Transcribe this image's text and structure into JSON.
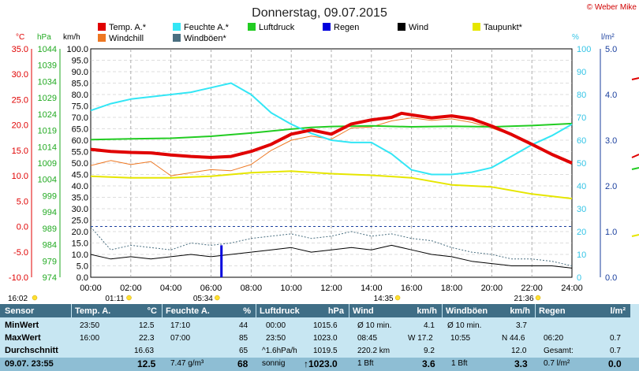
{
  "chart_data": {
    "type": "line",
    "title": "Donnerstag, 09.07.2015",
    "copyright": "© Weber Mike",
    "legend": [
      {
        "name": "Temp. A.*",
        "color": "#e00000"
      },
      {
        "name": "Feuchte A.*",
        "color": "#33e6f5"
      },
      {
        "name": "Luftdruck",
        "color": "#22cc22"
      },
      {
        "name": "Regen",
        "color": "#0000dd"
      },
      {
        "name": "Wind",
        "color": "#000000"
      },
      {
        "name": "Taupunkt*",
        "color": "#e6e600"
      },
      {
        "name": "Windchill",
        "color": "#ee7722"
      },
      {
        "name": "Windböen*",
        "color": "#4a6f80"
      }
    ],
    "axes": {
      "temp": {
        "unit": "°C",
        "ticks": [
          "35.0",
          "30.0",
          "25.0",
          "20.0",
          "15.0",
          "10.0",
          "5.0",
          "0.0",
          "-5.0",
          "-10.0"
        ],
        "range": [
          -10,
          35
        ],
        "color": "#e00000"
      },
      "pressure": {
        "unit": "hPa",
        "ticks": [
          "1044",
          "1039",
          "1034",
          "1029",
          "1024",
          "1019",
          "1014",
          "1009",
          "1004",
          "999",
          "994",
          "989",
          "984",
          "979",
          "974"
        ],
        "range": [
          974,
          1044
        ],
        "color": "#22aa22"
      },
      "wind": {
        "unit": "km/h",
        "ticks": [
          "100.0",
          "95.0",
          "90.0",
          "85.0",
          "80.0",
          "75.0",
          "70.0",
          "65.0",
          "60.0",
          "55.0",
          "50.0",
          "45.0",
          "40.0",
          "35.0",
          "30.0",
          "25.0",
          "20.0",
          "15.0",
          "10.0",
          "5.0",
          "0.0"
        ],
        "range": [
          0,
          100
        ]
      },
      "humidity": {
        "unit": "%",
        "ticks": [
          "100",
          "90",
          "80",
          "70",
          "60",
          "50",
          "40",
          "30",
          "20",
          "10",
          "0"
        ],
        "range": [
          0,
          100
        ],
        "color": "#33c4e6"
      },
      "rain": {
        "unit": "l/m²",
        "ticks": [
          "5.0",
          "4.0",
          "3.0",
          "2.0",
          "1.0",
          "0.0"
        ],
        "range": [
          0,
          5
        ],
        "color": "#1a3f9e"
      }
    },
    "x_ticks": [
      "00:00",
      "02:00",
      "04:00",
      "06:00",
      "08:00",
      "10:00",
      "12:00",
      "14:00",
      "16:00",
      "18:00",
      "20:00",
      "22:00",
      "24:00"
    ],
    "x_range": [
      0,
      24
    ],
    "series": [
      {
        "name": "Temp. A.*",
        "axis": "temp",
        "x": [
          0,
          1,
          2,
          3,
          4,
          5,
          6,
          7,
          8,
          9,
          10,
          11,
          12,
          13,
          14,
          15,
          15.5,
          16,
          17,
          18,
          19,
          20,
          21,
          22,
          23,
          24
        ],
        "values": [
          15.2,
          14.8,
          14.6,
          14.5,
          14.1,
          13.8,
          13.6,
          13.8,
          14.8,
          16.2,
          18.2,
          19.0,
          18.2,
          20.2,
          21.0,
          21.5,
          22.3,
          22.0,
          21.4,
          21.8,
          21.2,
          19.8,
          18.1,
          16.2,
          14.2,
          12.5
        ]
      },
      {
        "name": "Windchill",
        "axis": "temp",
        "x": [
          0,
          1,
          2,
          3,
          4,
          5,
          6,
          7,
          8,
          9,
          10,
          11,
          12,
          13,
          14,
          15,
          16,
          17,
          18,
          19,
          20,
          21,
          22,
          23,
          24
        ],
        "values": [
          12.0,
          13.0,
          12.2,
          12.8,
          10.0,
          10.6,
          11.2,
          11.0,
          12.2,
          15.0,
          17.0,
          17.8,
          17.2,
          19.4,
          19.6,
          20.8,
          21.4,
          20.9,
          21.2,
          20.5,
          19.4,
          18.0,
          16.0,
          14.0,
          12.4
        ]
      },
      {
        "name": "Taupunkt*",
        "axis": "temp",
        "x": [
          0,
          2,
          4,
          6,
          8,
          10,
          12,
          14,
          16,
          18,
          20,
          22,
          24
        ],
        "values": [
          9.9,
          9.6,
          9.6,
          9.9,
          10.6,
          10.9,
          10.4,
          10.1,
          9.6,
          8.2,
          7.8,
          6.4,
          5.5
        ]
      },
      {
        "name": "Luftdruck",
        "axis": "pressure",
        "x": [
          0,
          2,
          4,
          6,
          8,
          10,
          11,
          12,
          14,
          16,
          18,
          20,
          22,
          24
        ],
        "values": [
          1016.2,
          1016.4,
          1016.6,
          1017.2,
          1018.2,
          1019.4,
          1019.9,
          1020.2,
          1020.4,
          1020.1,
          1020.3,
          1020.1,
          1020.5,
          1021.1
        ]
      },
      {
        "name": "Feuchte A.*",
        "axis": "humidity",
        "x": [
          0,
          1,
          2,
          3,
          4,
          5,
          6,
          7,
          8,
          9,
          10,
          11,
          12,
          13,
          14,
          15,
          16,
          17,
          18,
          19,
          20,
          21,
          22,
          23,
          24
        ],
        "values": [
          73,
          76,
          78,
          79,
          80,
          81,
          83,
          85,
          80,
          72,
          67,
          63,
          60,
          59,
          59,
          54,
          47,
          45,
          45,
          46,
          48,
          53,
          58,
          62,
          67
        ]
      },
      {
        "name": "Wind",
        "axis": "wind",
        "x": [
          0,
          1,
          2,
          3,
          4,
          5,
          6,
          7,
          8,
          9,
          10,
          11,
          12,
          13,
          14,
          15,
          16,
          17,
          18,
          19,
          20,
          21,
          22,
          23,
          24
        ],
        "values": [
          10,
          8,
          9,
          8,
          9,
          10,
          9,
          10,
          11,
          12,
          13,
          11,
          12,
          13,
          12,
          14,
          12,
          10,
          9,
          7,
          6,
          5,
          5,
          5,
          4
        ]
      },
      {
        "name": "Windböen*",
        "axis": "wind",
        "x": [
          0,
          1,
          2,
          3,
          4,
          5,
          6,
          7,
          8,
          9,
          10,
          11,
          12,
          13,
          14,
          15,
          16,
          17,
          18,
          19,
          20,
          21,
          22,
          23,
          24
        ],
        "values": [
          22,
          12,
          14,
          13,
          12,
          15,
          14,
          15,
          17,
          18,
          19,
          17,
          18,
          20,
          18,
          19,
          17,
          16,
          13,
          11,
          10,
          8,
          8,
          7,
          5
        ]
      },
      {
        "name": "Regen",
        "axis": "rain",
        "type": "bar",
        "x": [
          6.5
        ],
        "values": [
          0.7
        ]
      }
    ],
    "ref_line": {
      "axis": "temp",
      "value": 0,
      "style": "dashed",
      "color": "#1a3f9e"
    },
    "grid": true,
    "sun_markers": [
      {
        "label": "16:02",
        "x": 0
      },
      {
        "label": "01:11",
        "x": 1.2
      },
      {
        "label": "05:34",
        "x": 5.6
      },
      {
        "label": "14:35",
        "x": 14.6
      },
      {
        "label": "21:36",
        "x": 21.6
      }
    ]
  },
  "footer": {
    "columns": [
      {
        "header": "Sensor",
        "rows": [
          "MinWert",
          "MaxWert",
          "Durchschnitt",
          "09.07. 23:55"
        ]
      },
      {
        "header": "Temp. A.",
        "unit": "°C",
        "rows": [
          [
            "23:50",
            "12.5"
          ],
          [
            "16:00",
            "22.3"
          ],
          [
            "",
            "16.63"
          ],
          [
            "",
            "12.5"
          ]
        ]
      },
      {
        "header": "Feuchte A.",
        "unit": "%",
        "rows": [
          [
            "17:10",
            "44"
          ],
          [
            "07:00",
            "85"
          ],
          [
            "",
            "65"
          ],
          [
            "7.47 g/m³",
            "68"
          ]
        ]
      },
      {
        "header": "Luftdruck",
        "unit": "hPa",
        "rows": [
          [
            "00:00",
            "1015.6"
          ],
          [
            "23:50",
            "1023.0"
          ],
          [
            "^1.6hPa/h",
            "1019.5"
          ],
          [
            "sonnig",
            "↑1023.0"
          ]
        ]
      },
      {
        "header": "Wind",
        "unit": "km/h",
        "rows": [
          [
            "Ø 10 min.",
            "4.1"
          ],
          [
            "08:45",
            "W 17.2"
          ],
          [
            "220.2 km",
            "9.2"
          ],
          [
            "1 Bft",
            "3.6"
          ]
        ]
      },
      {
        "header": "Windböen",
        "unit": "km/h",
        "rows": [
          [
            "Ø 10 min.",
            "3.7"
          ],
          [
            "10:55",
            "N 44.6"
          ],
          [
            "",
            "12.0"
          ],
          [
            "1 Bft",
            "3.3"
          ]
        ]
      },
      {
        "header": "Regen",
        "unit": "l/m²",
        "rows": [
          [
            "",
            ""
          ],
          [
            "06:20",
            "0.7"
          ],
          [
            "Gesamt:",
            "0.7"
          ],
          [
            "0.7 l/m²",
            "0.0"
          ]
        ]
      }
    ]
  }
}
